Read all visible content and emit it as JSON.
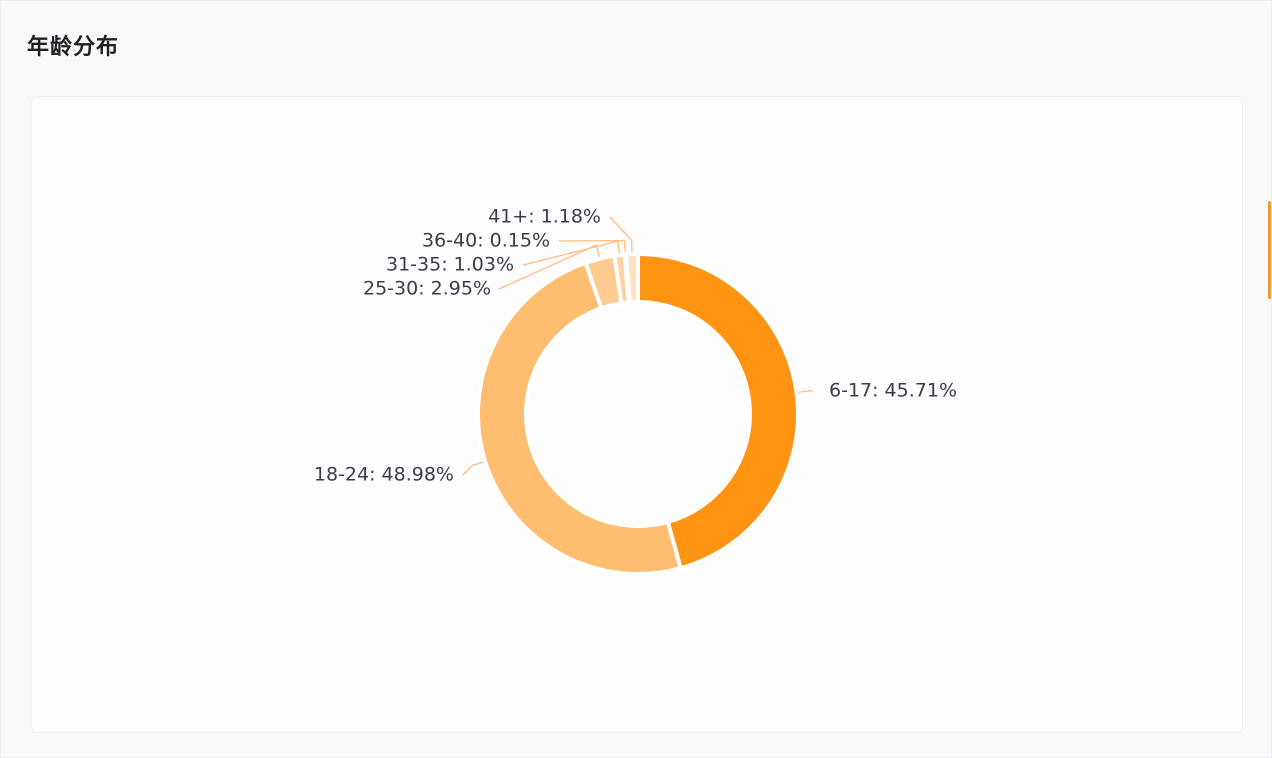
{
  "header": {
    "title": "年龄分布"
  },
  "colors": {
    "accent": "#f29a2e",
    "slices": [
      "#ff9412",
      "#ffbd70",
      "#ffcb8f",
      "#ffd3a0",
      "#ffdcb4",
      "#ffe2c0"
    ],
    "leader": "#ffbe80",
    "label": "#3f3a4d"
  },
  "chart_data": {
    "type": "pie",
    "donut": true,
    "categories": [
      "6-17",
      "18-24",
      "25-30",
      "31-35",
      "36-40",
      "41+"
    ],
    "values": [
      45.71,
      48.98,
      2.95,
      1.03,
      0.15,
      1.18
    ],
    "labels": [
      "6-17: 45.71%",
      "18-24: 48.98%",
      "25-30: 2.95%",
      "31-35: 1.03%",
      "36-40: 0.15%",
      "41+: 1.18%"
    ],
    "title": "",
    "legend": "none"
  }
}
